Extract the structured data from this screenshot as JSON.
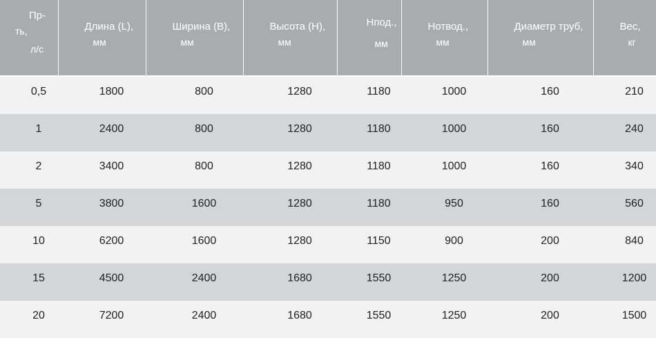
{
  "table": {
    "headers": [
      {
        "lines": [
          "Пр-",
          "ть,",
          "л/с"
        ]
      },
      {
        "lines": [
          "Длина (L),",
          "мм"
        ]
      },
      {
        "lines": [
          "Ширина (В),",
          "мм"
        ]
      },
      {
        "lines": [
          "Высота (Н),",
          "мм"
        ]
      },
      {
        "lines": [
          "Нпод.,",
          "мм"
        ]
      },
      {
        "lines": [
          "Нотвод.,",
          "мм"
        ]
      },
      {
        "lines": [
          "Диаметр труб,",
          "мм"
        ]
      },
      {
        "lines": [
          "Вес,",
          "кг"
        ]
      }
    ],
    "rows": [
      [
        "0,5",
        "1800",
        "800",
        "1280",
        "1180",
        "1000",
        "160",
        "210"
      ],
      [
        "1",
        "2400",
        "800",
        "1280",
        "1180",
        "1000",
        "160",
        "240"
      ],
      [
        "2",
        "3400",
        "800",
        "1280",
        "1180",
        "1000",
        "160",
        "340"
      ],
      [
        "5",
        "3800",
        "1600",
        "1280",
        "1180",
        "950",
        "160",
        "560"
      ],
      [
        "10",
        "6200",
        "1600",
        "1280",
        "1150",
        "900",
        "200",
        "840"
      ],
      [
        "15",
        "4500",
        "2400",
        "1680",
        "1550",
        "1250",
        "200",
        "1200"
      ],
      [
        "20",
        "7200",
        "2400",
        "1680",
        "1550",
        "1250",
        "200",
        "1500"
      ]
    ]
  },
  "colors": {
    "header_bg": "#a9acaf",
    "row_light": "#f2f2f2",
    "row_dark": "#d4d5d7"
  }
}
